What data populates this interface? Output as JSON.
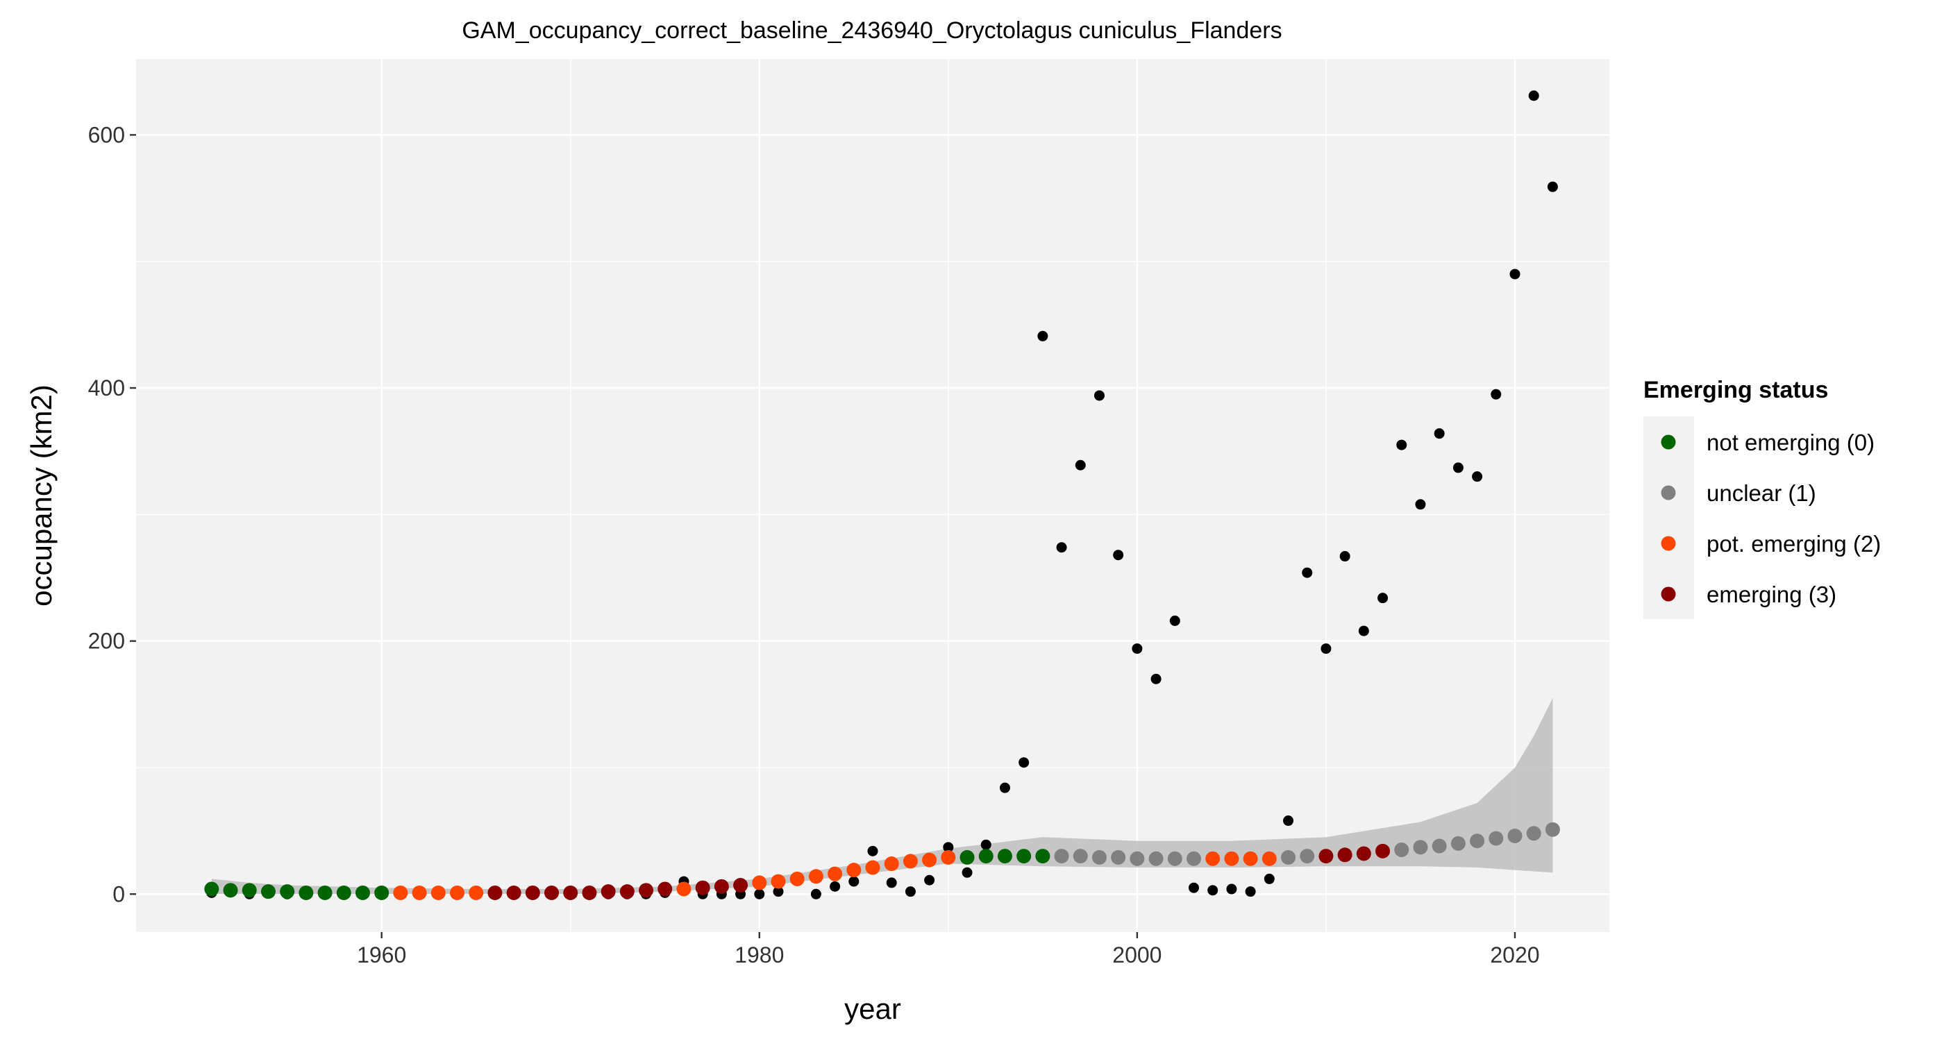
{
  "chart_data": {
    "type": "scatter",
    "title": "GAM_occupancy_correct_baseline_2436940_Oryctolagus cuniculus_Flanders",
    "xlabel": "year",
    "ylabel": "occupancy (km2)",
    "xlim": [
      1947,
      2025
    ],
    "ylim": [
      -30,
      660
    ],
    "x_ticks": [
      1960,
      1980,
      2000,
      2020
    ],
    "y_ticks": [
      0,
      200,
      400,
      600
    ],
    "grid": true,
    "legend_position": "right",
    "legend": {
      "title": "Emerging status",
      "entries": [
        {
          "label": "not emerging (0)",
          "color": "#006400"
        },
        {
          "label": "unclear (1)",
          "color": "#808080"
        },
        {
          "label": "pot. emerging (2)",
          "color": "#FF4500"
        },
        {
          "label": "emerging (3)",
          "color": "#8B0000"
        }
      ]
    },
    "observed": {
      "color": "#000000",
      "points": [
        [
          1951,
          1
        ],
        [
          1952,
          2
        ],
        [
          1953,
          0
        ],
        [
          1954,
          1
        ],
        [
          1955,
          0
        ],
        [
          1956,
          1
        ],
        [
          1957,
          0
        ],
        [
          1958,
          1
        ],
        [
          1959,
          0
        ],
        [
          1960,
          0
        ],
        [
          1961,
          0
        ],
        [
          1962,
          0
        ],
        [
          1963,
          0
        ],
        [
          1964,
          0
        ],
        [
          1965,
          0
        ],
        [
          1966,
          0
        ],
        [
          1967,
          0
        ],
        [
          1968,
          0
        ],
        [
          1969,
          0
        ],
        [
          1970,
          0
        ],
        [
          1971,
          0
        ],
        [
          1972,
          0
        ],
        [
          1973,
          0
        ],
        [
          1974,
          0
        ],
        [
          1975,
          1
        ],
        [
          1976,
          10
        ],
        [
          1977,
          0
        ],
        [
          1978,
          0
        ],
        [
          1979,
          0
        ],
        [
          1980,
          0
        ],
        [
          1981,
          2
        ],
        [
          1982,
          12
        ],
        [
          1983,
          0
        ],
        [
          1984,
          6
        ],
        [
          1985,
          10
        ],
        [
          1986,
          34
        ],
        [
          1987,
          9
        ],
        [
          1988,
          2
        ],
        [
          1989,
          11
        ],
        [
          1990,
          37
        ],
        [
          1991,
          17
        ],
        [
          1992,
          39
        ],
        [
          1993,
          84
        ],
        [
          1994,
          104
        ],
        [
          1995,
          441
        ],
        [
          1996,
          274
        ],
        [
          1997,
          339
        ],
        [
          1998,
          394
        ],
        [
          1999,
          268
        ],
        [
          2000,
          194
        ],
        [
          2001,
          170
        ],
        [
          2002,
          216
        ],
        [
          2003,
          5
        ],
        [
          2004,
          3
        ],
        [
          2005,
          4
        ],
        [
          2006,
          2
        ],
        [
          2007,
          12
        ],
        [
          2008,
          58
        ],
        [
          2009,
          254
        ],
        [
          2010,
          194
        ],
        [
          2011,
          267
        ],
        [
          2012,
          208
        ],
        [
          2013,
          234
        ],
        [
          2014,
          355
        ],
        [
          2015,
          308
        ],
        [
          2016,
          364
        ],
        [
          2017,
          337
        ],
        [
          2018,
          330
        ],
        [
          2019,
          395
        ],
        [
          2020,
          490
        ],
        [
          2021,
          631
        ],
        [
          2022,
          559
        ]
      ]
    },
    "fitted": {
      "points": [
        [
          1951,
          4,
          0
        ],
        [
          1952,
          3,
          0
        ],
        [
          1953,
          3,
          0
        ],
        [
          1954,
          2,
          0
        ],
        [
          1955,
          2,
          0
        ],
        [
          1956,
          1,
          0
        ],
        [
          1957,
          1,
          0
        ],
        [
          1958,
          1,
          0
        ],
        [
          1959,
          1,
          0
        ],
        [
          1960,
          1,
          0
        ],
        [
          1961,
          1,
          2
        ],
        [
          1962,
          1,
          2
        ],
        [
          1963,
          1,
          2
        ],
        [
          1964,
          1,
          2
        ],
        [
          1965,
          1,
          2
        ],
        [
          1966,
          1,
          3
        ],
        [
          1967,
          1,
          3
        ],
        [
          1968,
          1,
          3
        ],
        [
          1969,
          1,
          3
        ],
        [
          1970,
          1,
          3
        ],
        [
          1971,
          1,
          3
        ],
        [
          1972,
          2,
          3
        ],
        [
          1973,
          2,
          3
        ],
        [
          1974,
          3,
          3
        ],
        [
          1975,
          4,
          3
        ],
        [
          1976,
          4,
          2
        ],
        [
          1977,
          5,
          3
        ],
        [
          1978,
          6,
          3
        ],
        [
          1979,
          7,
          3
        ],
        [
          1980,
          9,
          2
        ],
        [
          1981,
          10,
          2
        ],
        [
          1982,
          12,
          2
        ],
        [
          1983,
          14,
          2
        ],
        [
          1984,
          16,
          2
        ],
        [
          1985,
          19,
          2
        ],
        [
          1986,
          21,
          2
        ],
        [
          1987,
          24,
          2
        ],
        [
          1988,
          26,
          2
        ],
        [
          1989,
          27,
          2
        ],
        [
          1990,
          29,
          2
        ],
        [
          1991,
          29,
          0
        ],
        [
          1992,
          30,
          0
        ],
        [
          1993,
          30,
          0
        ],
        [
          1994,
          30,
          0
        ],
        [
          1995,
          30,
          0
        ],
        [
          1996,
          30,
          1
        ],
        [
          1997,
          30,
          1
        ],
        [
          1998,
          29,
          1
        ],
        [
          1999,
          29,
          1
        ],
        [
          2000,
          28,
          1
        ],
        [
          2001,
          28,
          1
        ],
        [
          2002,
          28,
          1
        ],
        [
          2003,
          28,
          1
        ],
        [
          2004,
          28,
          2
        ],
        [
          2005,
          28,
          2
        ],
        [
          2006,
          28,
          2
        ],
        [
          2007,
          28,
          2
        ],
        [
          2008,
          29,
          1
        ],
        [
          2009,
          30,
          1
        ],
        [
          2010,
          30,
          3
        ],
        [
          2011,
          31,
          3
        ],
        [
          2012,
          32,
          3
        ],
        [
          2013,
          34,
          3
        ],
        [
          2014,
          35,
          1
        ],
        [
          2015,
          37,
          1
        ],
        [
          2016,
          38,
          1
        ],
        [
          2017,
          40,
          1
        ],
        [
          2018,
          42,
          1
        ],
        [
          2019,
          44,
          1
        ],
        [
          2020,
          46,
          1
        ],
        [
          2021,
          48,
          1
        ],
        [
          2022,
          51,
          1
        ]
      ],
      "status_colors": [
        "#006400",
        "#808080",
        "#FF4500",
        "#8B0000"
      ]
    },
    "confidence_band": {
      "color": "#BEBEBE",
      "x": [
        1951,
        1953,
        1955,
        1960,
        1965,
        1970,
        1975,
        1980,
        1985,
        1990,
        1995,
        2000,
        2005,
        2010,
        2015,
        2018,
        2020,
        2021,
        2022
      ],
      "lower": [
        0,
        0,
        0,
        0,
        0,
        0,
        2,
        6,
        15,
        24,
        22,
        21,
        21,
        22,
        22,
        21,
        19,
        18,
        17
      ],
      "upper": [
        12,
        9,
        7,
        5,
        4,
        4,
        6,
        12,
        23,
        36,
        45,
        42,
        42,
        45,
        57,
        72,
        100,
        125,
        155
      ]
    }
  }
}
